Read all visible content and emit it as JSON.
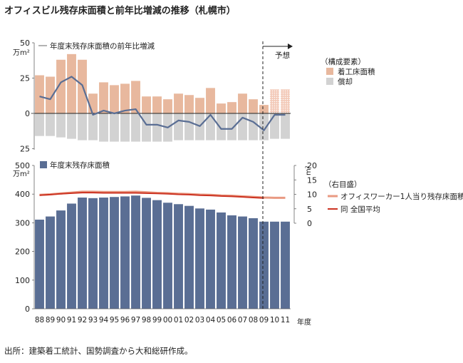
{
  "title": "オフィスビル残存床面積と前年比増減の推移（札幌市）",
  "source": "出所：建築着工統計、国勢調査から大和総研作成。",
  "forecast_label": "予想",
  "year_unit": "年度",
  "colors": {
    "construction": "#e8b89e",
    "depreciation": "#d2d2d2",
    "stock": "#5a6e94",
    "line_change": "#5a6e94",
    "per_worker": "#e99a82",
    "national": "#cc3322",
    "forecast_hatch": "#e8a48a"
  },
  "chart_data": [
    {
      "type": "bar",
      "categories": [
        "88",
        "89",
        "90",
        "91",
        "92",
        "93",
        "94",
        "95",
        "96",
        "97",
        "98",
        "99",
        "00",
        "01",
        "02",
        "03",
        "04",
        "05",
        "06",
        "07",
        "08",
        "09",
        "10",
        "11"
      ],
      "ylabel": "万m²",
      "ylim": [
        -25,
        50
      ],
      "yticks": [
        {
          "value": 50,
          "label": "50"
        },
        {
          "value": 25,
          "label": "25"
        },
        {
          "value": 0,
          "label": "0"
        },
        {
          "value": -25,
          "label": "25"
        }
      ],
      "legend_title": "（構成要素）",
      "forecast_from": "09",
      "series": [
        {
          "name": "着工床面積",
          "type": "bar",
          "values": [
            27,
            26,
            38,
            42,
            38,
            14,
            22,
            20,
            21,
            23,
            12,
            12,
            10,
            14,
            13,
            11,
            18,
            7,
            8,
            14,
            10,
            6,
            17,
            17
          ]
        },
        {
          "name": "償却",
          "type": "bar",
          "values": [
            -16,
            -16,
            -17,
            -18,
            -19,
            -19,
            -20,
            -20,
            -20,
            -20,
            -20,
            -20,
            -20,
            -19,
            -19,
            -19,
            -19,
            -19,
            -19,
            -19,
            -19,
            -19,
            -18,
            -18
          ]
        },
        {
          "name": "年度末残存床面積の前年比増減",
          "type": "line",
          "values": [
            12,
            10,
            22,
            26,
            20,
            -1,
            2,
            0,
            2,
            3,
            -8,
            -8,
            -10,
            -5,
            -6,
            -9,
            -1,
            -11,
            -11,
            -3,
            -6,
            -12,
            -1,
            -1
          ]
        }
      ]
    },
    {
      "type": "bar",
      "categories": [
        "88",
        "89",
        "90",
        "91",
        "92",
        "93",
        "94",
        "95",
        "96",
        "97",
        "98",
        "99",
        "00",
        "01",
        "02",
        "03",
        "04",
        "05",
        "06",
        "07",
        "08",
        "09",
        "10",
        "11"
      ],
      "ylabel": "万m²",
      "ylim": [
        0,
        500
      ],
      "yticks": [
        0,
        100,
        200,
        300,
        400,
        500
      ],
      "y2label": "m²",
      "y2lim": [
        0,
        20
      ],
      "y2ticks": [
        0,
        5,
        10,
        15,
        20
      ],
      "series": [
        {
          "name": "年度末残存床面積",
          "type": "bar",
          "values": [
            311,
            322,
            343,
            367,
            388,
            386,
            388,
            390,
            392,
            395,
            387,
            379,
            370,
            365,
            359,
            350,
            346,
            336,
            326,
            322,
            316,
            304,
            304,
            304
          ]
        },
        {
          "name": "オフィスワーカー1人当り残存床面積",
          "type": "line",
          "axis": "right",
          "values": [
            9.8,
            10.0,
            10.3,
            10.6,
            10.9,
            10.9,
            10.8,
            10.8,
            10.8,
            10.9,
            10.7,
            10.5,
            10.4,
            10.2,
            10.1,
            9.9,
            9.8,
            9.6,
            9.5,
            9.3,
            9.1,
            8.9,
            8.8,
            8.8
          ]
        },
        {
          "name": "同 全国平均",
          "type": "line",
          "axis": "right",
          "values": [
            9.7,
            9.9,
            10.2,
            10.4,
            10.6,
            10.6,
            10.5,
            10.5,
            10.5,
            10.5,
            10.4,
            10.3,
            10.2,
            10.0,
            9.9,
            9.7,
            9.6,
            9.4,
            9.3,
            9.1,
            8.9,
            8.7,
            null,
            null
          ]
        }
      ],
      "legend_title": "（右目盛）"
    }
  ]
}
